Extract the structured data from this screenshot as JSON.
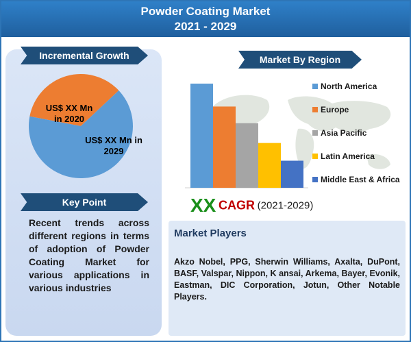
{
  "header": {
    "line1": "Powder Coating Market",
    "line2": "2021 - 2029"
  },
  "growth": {
    "banner": "Incremental Growth",
    "label_2020_line1": "US$ XX Mn",
    "label_2020_line2": "in 2020",
    "label_2029_line1": "US$ XX Mn in",
    "label_2029_line2": "2029",
    "colors": {
      "2020": "#ed7d31",
      "2029": "#5b9bd5"
    }
  },
  "key_point": {
    "banner": "Key Point",
    "text": "Recent trends across different regions in terms of adoption of Powder Coating Market for various applications in various industries"
  },
  "region": {
    "banner": "Market By Region"
  },
  "chart_data": [
    {
      "type": "pie",
      "categories": [
        "2020",
        "2029"
      ],
      "values": [
        35,
        65
      ],
      "labels": [
        "US$ XX Mn in 2020",
        "US$ XX Mn in 2029"
      ],
      "colors": [
        "#ed7d31",
        "#5b9bd5"
      ]
    },
    {
      "type": "bar",
      "categories": [
        "North America",
        "Europe",
        "Asia Pacific",
        "Latin America",
        "Middle East & Africa"
      ],
      "values": [
        100,
        78,
        62,
        43,
        26
      ],
      "colors": [
        "#5b9bd5",
        "#ed7d31",
        "#a5a5a5",
        "#ffc000",
        "#4472c4"
      ],
      "legend_position": "right",
      "ylim": [
        0,
        100
      ],
      "grid": false
    }
  ],
  "cagr": {
    "value": "XX",
    "label": "CAGR",
    "period": "(2021-2029)"
  },
  "players": {
    "title": "Market Players",
    "text": "Akzo Nobel, PPG, Sherwin Williams, Axalta, DuPont, BASF, Valspar, Nippon, K ansai, Arkema, Bayer, Evonik, Eastman, DIC Corporation, Jotun, Other Notable Players."
  }
}
